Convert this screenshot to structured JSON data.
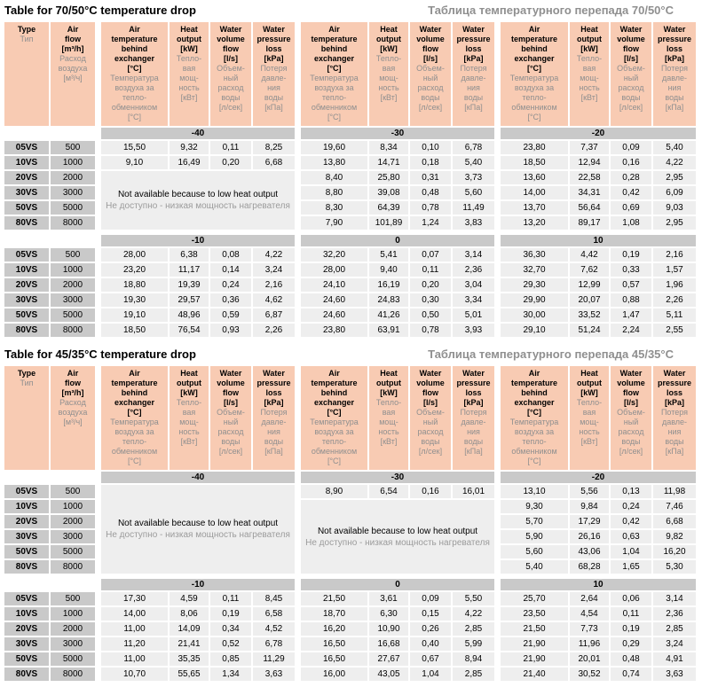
{
  "colors": {
    "header_bg": "#f8cbb3",
    "band_bg": "#c9c9c9",
    "cell_bg": "#eeeeee",
    "muted_text": "#8f8f8f",
    "page_bg": "#ffffff"
  },
  "headers": {
    "type": {
      "en": "Type",
      "ru": "Тип"
    },
    "air_flow": {
      "en": "Air\nflow\n[m³/h]",
      "ru": "Расход\nвоздуха\n[м³/ч]"
    },
    "air_temp": {
      "en": "Air\ntemperature\nbehind\nexchanger\n[°C]",
      "ru": "Температура\nвоздуха за\nтепло-\nобменником\n[°C]"
    },
    "heat_output": {
      "en": "Heat\noutput\n[kW]",
      "ru": "Тепло-\nвая\nмощ-\nность\n[кВт]"
    },
    "water_volume": {
      "en": "Water\nvolume\nflow\n[l/s]",
      "ru": "Объем-\nный\nрасход\nводы\n[л/сек]"
    },
    "water_pressure": {
      "en": "Water\npressure\nloss\n[kPa]",
      "ru": "Потеря\nдавле-\nния\nводы\n[кПа]"
    }
  },
  "not_available": {
    "en": "Not available because to low heat output",
    "ru": "Не доступно - низкая мощность нагревателя"
  },
  "row_labels": [
    {
      "type": "05VS",
      "flow": "500"
    },
    {
      "type": "10VS",
      "flow": "1000"
    },
    {
      "type": "20VS",
      "flow": "2000"
    },
    {
      "type": "30VS",
      "flow": "3000"
    },
    {
      "type": "50VS",
      "flow": "5000"
    },
    {
      "type": "80VS",
      "flow": "8000"
    }
  ],
  "tables": [
    {
      "title_en": "Table for 70/50°C temperature drop",
      "title_ru": "Таблица температурного перепада 70/50°C",
      "sections": [
        {
          "bands": [
            "-40",
            "-30",
            "-20"
          ],
          "groups": [
            {
              "na": {
                "start": 2,
                "span": 4
              },
              "rows": [
                [
                  "15,50",
                  "9,32",
                  "0,11",
                  "8,25"
                ],
                [
                  "9,10",
                  "16,49",
                  "0,20",
                  "6,68"
                ],
                null,
                null,
                null,
                null
              ]
            },
            {
              "rows": [
                [
                  "19,60",
                  "8,34",
                  "0,10",
                  "6,78"
                ],
                [
                  "13,80",
                  "14,71",
                  "0,18",
                  "5,40"
                ],
                [
                  "8,40",
                  "25,80",
                  "0,31",
                  "3,73"
                ],
                [
                  "8,80",
                  "39,08",
                  "0,48",
                  "5,60"
                ],
                [
                  "8,30",
                  "64,39",
                  "0,78",
                  "11,49"
                ],
                [
                  "7,90",
                  "101,89",
                  "1,24",
                  "3,83"
                ]
              ]
            },
            {
              "rows": [
                [
                  "23,80",
                  "7,37",
                  "0,09",
                  "5,40"
                ],
                [
                  "18,50",
                  "12,94",
                  "0,16",
                  "4,22"
                ],
                [
                  "13,60",
                  "22,58",
                  "0,28",
                  "2,95"
                ],
                [
                  "14,00",
                  "34,31",
                  "0,42",
                  "6,09"
                ],
                [
                  "13,70",
                  "56,64",
                  "0,69",
                  "9,03"
                ],
                [
                  "13,20",
                  "89,17",
                  "1,08",
                  "2,95"
                ]
              ]
            }
          ]
        },
        {
          "bands": [
            "-10",
            "0",
            "10"
          ],
          "groups": [
            {
              "rows": [
                [
                  "28,00",
                  "6,38",
                  "0,08",
                  "4,22"
                ],
                [
                  "23,20",
                  "11,17",
                  "0,14",
                  "3,24"
                ],
                [
                  "18,80",
                  "19,39",
                  "0,24",
                  "2,16"
                ],
                [
                  "19,30",
                  "29,57",
                  "0,36",
                  "4,62"
                ],
                [
                  "19,10",
                  "48,96",
                  "0,59",
                  "6,87"
                ],
                [
                  "18,50",
                  "76,54",
                  "0,93",
                  "2,26"
                ]
              ]
            },
            {
              "rows": [
                [
                  "32,20",
                  "5,41",
                  "0,07",
                  "3,14"
                ],
                [
                  "28,00",
                  "9,40",
                  "0,11",
                  "2,36"
                ],
                [
                  "24,10",
                  "16,19",
                  "0,20",
                  "3,04"
                ],
                [
                  "24,60",
                  "24,83",
                  "0,30",
                  "3,34"
                ],
                [
                  "24,60",
                  "41,26",
                  "0,50",
                  "5,01"
                ],
                [
                  "23,80",
                  "63,91",
                  "0,78",
                  "3,93"
                ]
              ]
            },
            {
              "rows": [
                [
                  "36,30",
                  "4,42",
                  "0,19",
                  "2,16"
                ],
                [
                  "32,70",
                  "7,62",
                  "0,33",
                  "1,57"
                ],
                [
                  "29,30",
                  "12,99",
                  "0,57",
                  "1,96"
                ],
                [
                  "29,90",
                  "20,07",
                  "0,88",
                  "2,26"
                ],
                [
                  "30,00",
                  "33,52",
                  "1,47",
                  "5,11"
                ],
                [
                  "29,10",
                  "51,24",
                  "2,24",
                  "2,55"
                ]
              ]
            }
          ]
        }
      ]
    },
    {
      "title_en": "Table for 45/35°C temperature drop",
      "title_ru": "Таблица температурного перепада 45/35°C",
      "sections": [
        {
          "bands": [
            "-40",
            "-30",
            "-20"
          ],
          "groups": [
            {
              "na": {
                "start": 0,
                "span": 6
              },
              "rows": [
                null,
                null,
                null,
                null,
                null,
                null
              ]
            },
            {
              "na": {
                "start": 1,
                "span": 5
              },
              "rows": [
                [
                  "8,90",
                  "6,54",
                  "0,16",
                  "16,01"
                ],
                null,
                null,
                null,
                null,
                null
              ]
            },
            {
              "rows": [
                [
                  "13,10",
                  "5,56",
                  "0,13",
                  "11,98"
                ],
                [
                  "9,30",
                  "9,84",
                  "0,24",
                  "7,46"
                ],
                [
                  "5,70",
                  "17,29",
                  "0,42",
                  "6,68"
                ],
                [
                  "5,90",
                  "26,16",
                  "0,63",
                  "9,82"
                ],
                [
                  "5,60",
                  "43,06",
                  "1,04",
                  "16,20"
                ],
                [
                  "5,40",
                  "68,28",
                  "1,65",
                  "5,30"
                ]
              ]
            }
          ]
        },
        {
          "bands": [
            "-10",
            "0",
            "10"
          ],
          "groups": [
            {
              "rows": [
                [
                  "17,30",
                  "4,59",
                  "0,11",
                  "8,45"
                ],
                [
                  "14,00",
                  "8,06",
                  "0,19",
                  "6,58"
                ],
                [
                  "11,00",
                  "14,09",
                  "0,34",
                  "4,52"
                ],
                [
                  "11,20",
                  "21,41",
                  "0,52",
                  "6,78"
                ],
                [
                  "11,00",
                  "35,35",
                  "0,85",
                  "11,29"
                ],
                [
                  "10,70",
                  "55,65",
                  "1,34",
                  "3,63"
                ]
              ]
            },
            {
              "rows": [
                [
                  "21,50",
                  "3,61",
                  "0,09",
                  "5,50"
                ],
                [
                  "18,70",
                  "6,30",
                  "0,15",
                  "4,22"
                ],
                [
                  "16,20",
                  "10,90",
                  "0,26",
                  "2,85"
                ],
                [
                  "16,50",
                  "16,68",
                  "0,40",
                  "5,99"
                ],
                [
                  "16,50",
                  "27,67",
                  "0,67",
                  "8,94"
                ],
                [
                  "16,00",
                  "43,05",
                  "1,04",
                  "2,85"
                ]
              ]
            },
            {
              "rows": [
                [
                  "25,70",
                  "2,64",
                  "0,06",
                  "3,14"
                ],
                [
                  "23,50",
                  "4,54",
                  "0,11",
                  "2,36"
                ],
                [
                  "21,50",
                  "7,73",
                  "0,19",
                  "2,85"
                ],
                [
                  "21,90",
                  "11,96",
                  "0,29",
                  "3,24"
                ],
                [
                  "21,90",
                  "20,01",
                  "0,48",
                  "4,91"
                ],
                [
                  "21,40",
                  "30,52",
                  "0,74",
                  "3,63"
                ]
              ]
            }
          ]
        }
      ]
    }
  ]
}
